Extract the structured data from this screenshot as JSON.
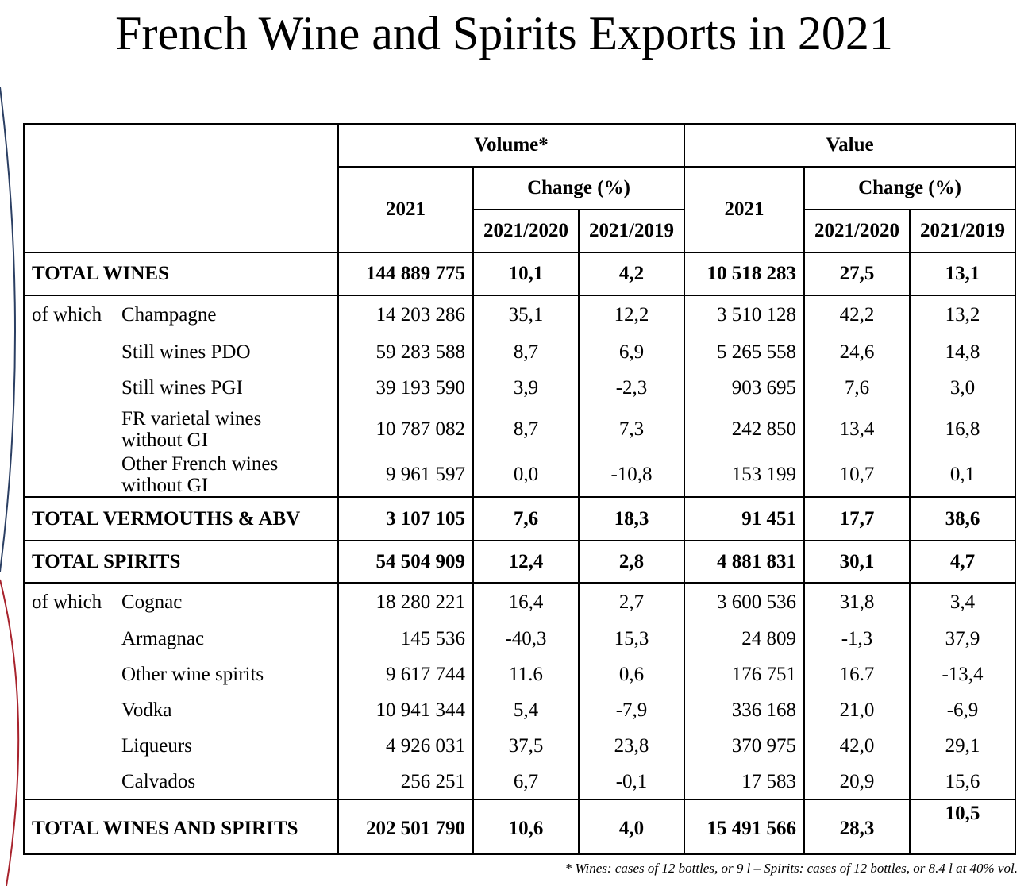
{
  "title": "French Wine and Spirits Exports in 2021",
  "headers": {
    "volume": "Volume*",
    "value": "Value",
    "year": "2021",
    "change": "Change (%)",
    "c2020": "2021/2020",
    "c2019": "2021/2019"
  },
  "of_which": "of which",
  "rows": {
    "total_wines": {
      "label": "TOTAL WINES",
      "vol": "144 889 775",
      "v20": "10,1",
      "v19": "4,2",
      "val": "10 518 283",
      "c20": "27,5",
      "c19": "13,1"
    },
    "champagne": {
      "label": "Champagne",
      "vol": "14 203 286",
      "v20": "35,1",
      "v19": "12,2",
      "val": "3 510 128",
      "c20": "42,2",
      "c19": "13,2"
    },
    "still_pdo": {
      "label": "Still wines PDO",
      "vol": "59 283 588",
      "v20": "8,7",
      "v19": "6,9",
      "val": "5 265 558",
      "c20": "24,6",
      "c19": "14,8"
    },
    "still_pgi": {
      "label": "Still wines PGI",
      "vol": "39 193 590",
      "v20": "3,9",
      "v19": "-2,3",
      "val": "903 695",
      "c20": "7,6",
      "c19": "3,0"
    },
    "fr_varietal": {
      "label": "FR varietal wines without GI",
      "vol": "10 787 082",
      "v20": "8,7",
      "v19": "7,3",
      "val": "242 850",
      "c20": "13,4",
      "c19": "16,8"
    },
    "other_french": {
      "label": "Other French wines without GI",
      "vol": "9 961 597",
      "v20": "0,0",
      "v19": "-10,8",
      "val": "153 199",
      "c20": "10,7",
      "c19": "0,1"
    },
    "total_vermouths": {
      "label": "TOTAL VERMOUTHS & ABV",
      "vol": "3 107 105",
      "v20": "7,6",
      "v19": "18,3",
      "val": "91 451",
      "c20": "17,7",
      "c19": "38,6"
    },
    "total_spirits": {
      "label": "TOTAL SPIRITS",
      "vol": "54 504 909",
      "v20": "12,4",
      "v19": "2,8",
      "val": "4 881 831",
      "c20": "30,1",
      "c19": "4,7"
    },
    "cognac": {
      "label": "Cognac",
      "vol": "18 280 221",
      "v20": "16,4",
      "v19": "2,7",
      "val": "3 600 536",
      "c20": "31,8",
      "c19": "3,4"
    },
    "armagnac": {
      "label": "Armagnac",
      "vol": "145 536",
      "v20": "-40,3",
      "v19": "15,3",
      "val": "24 809",
      "c20": "-1,3",
      "c19": "37,9"
    },
    "other_wine_spirits": {
      "label": "Other wine spirits",
      "vol": "9 617 744",
      "v20": "11.6",
      "v19": "0,6",
      "val": "176 751",
      "c20": "16.7",
      "c19": "-13,4"
    },
    "vodka": {
      "label": "Vodka",
      "vol": "10 941 344",
      "v20": "5,4",
      "v19": "-7,9",
      "val": "336 168",
      "c20": "21,0",
      "c19": "-6,9"
    },
    "liqueurs": {
      "label": "Liqueurs",
      "vol": "4 926 031",
      "v20": "37,5",
      "v19": "23,8",
      "val": "370 975",
      "c20": "42,0",
      "c19": "29,1"
    },
    "calvados": {
      "label": "Calvados",
      "vol": "256 251",
      "v20": "6,7",
      "v19": "-0,1",
      "val": "17 583",
      "c20": "20,9",
      "c19": "15,6"
    },
    "total_ws": {
      "label": "TOTAL WINES AND SPIRITS",
      "vol": "202 501 790",
      "v20": "10,6",
      "v19": "4,0",
      "val": "15 491 566",
      "c20": "28,3",
      "c19": "10,5"
    }
  },
  "footnote": "* Wines: cases of 12 bottles, or 9 l – Spirits: cases of 12 bottles, or 8.4 l at 40% vol.",
  "colors": {
    "arc_blue": "#2b3f63",
    "arc_red": "#a8232d"
  }
}
